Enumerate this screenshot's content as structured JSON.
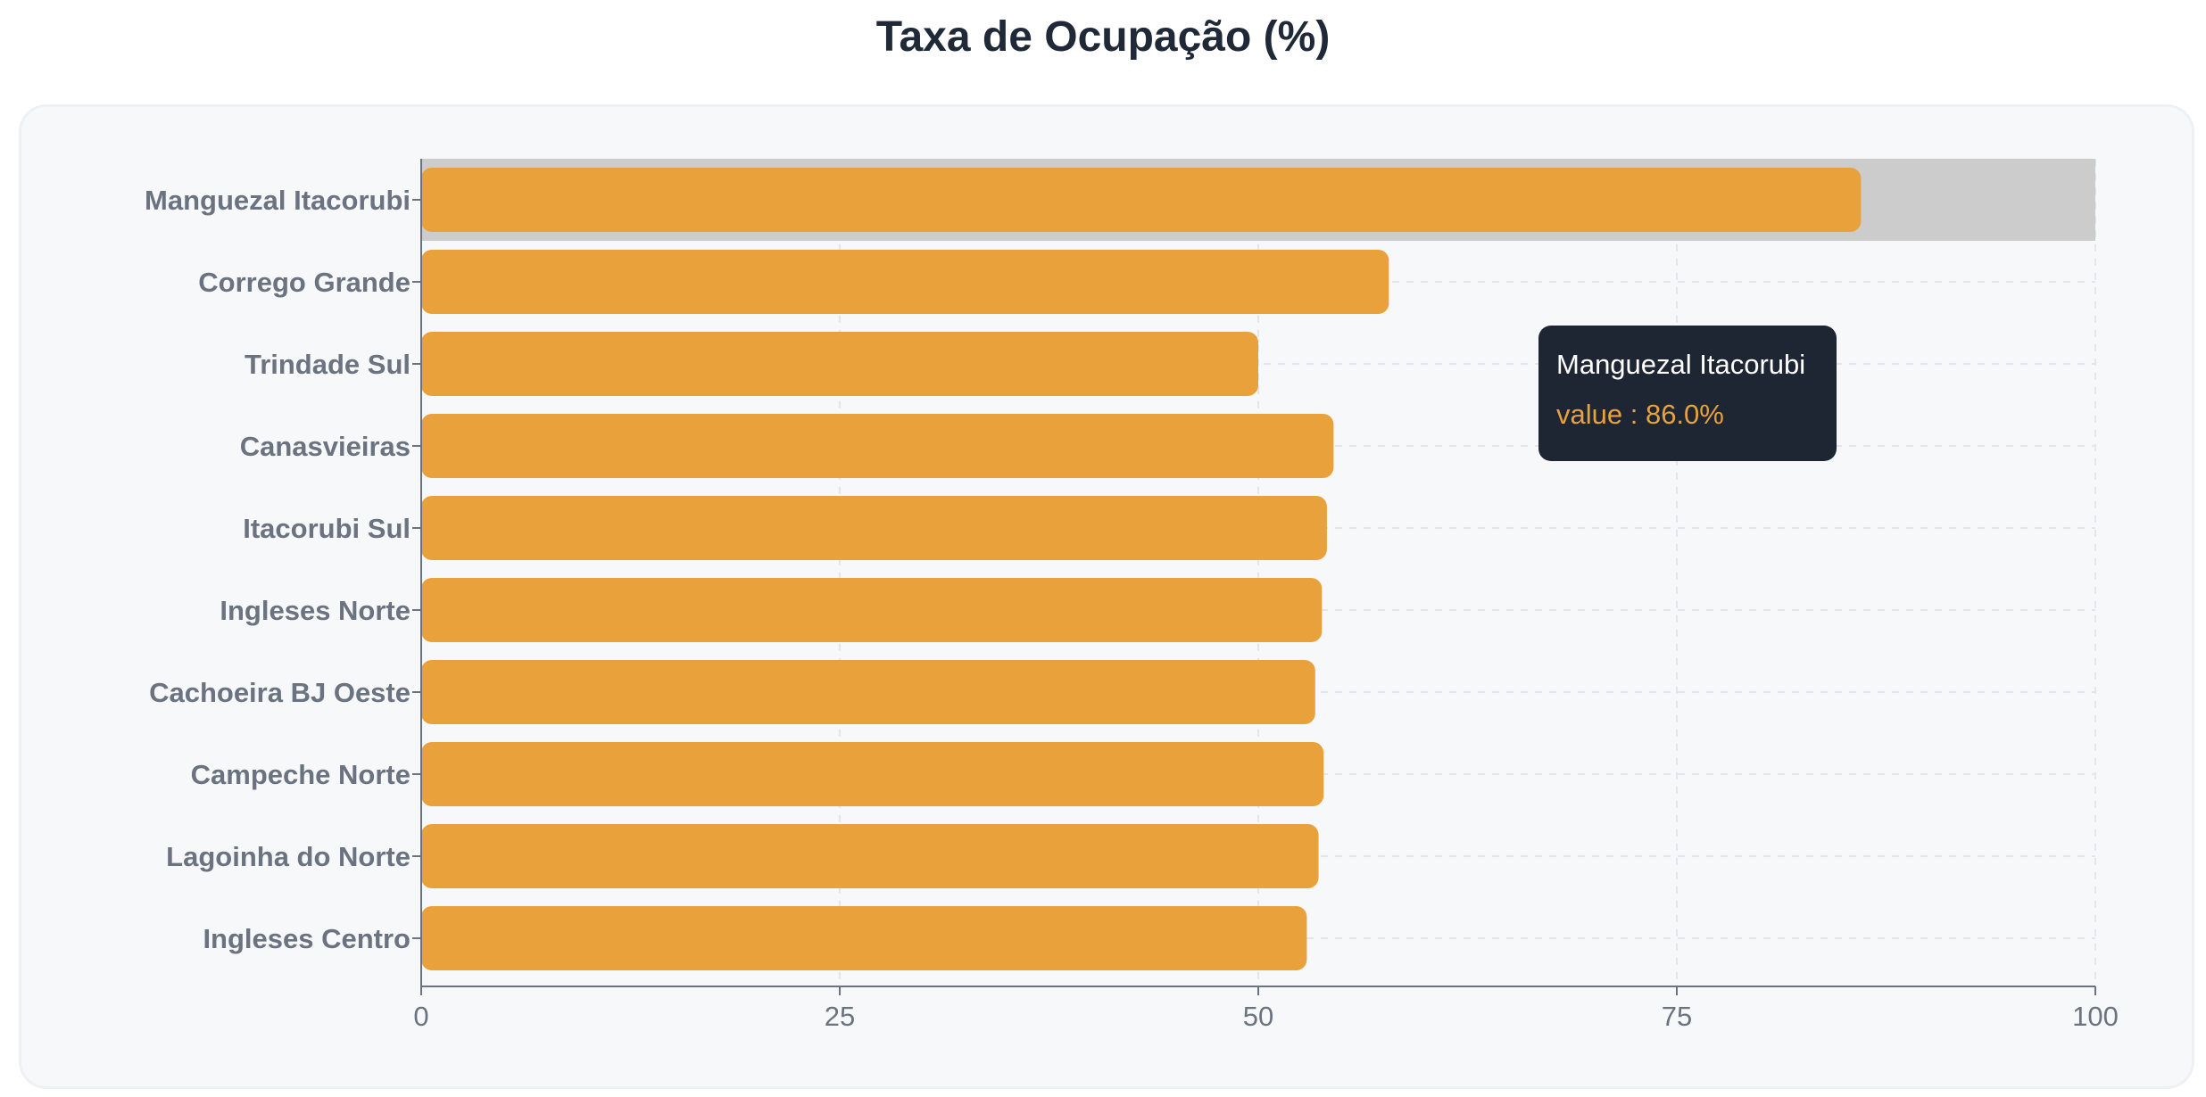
{
  "title": "Taxa de Ocupação (%)",
  "colors": {
    "bar": "#e8a13b",
    "highlight": "#cccccc",
    "axis": "#6b7280",
    "grid": "#e3e5e9",
    "tooltip_bg": "#1f2633"
  },
  "tooltip": {
    "title": "Manguezal Itacorubi",
    "value_label": "value : 86.0%"
  },
  "chart_data": {
    "type": "bar",
    "orientation": "horizontal",
    "title": "Taxa de Ocupação (%)",
    "xlabel": "",
    "ylabel": "",
    "xlim": [
      0,
      100
    ],
    "x_ticks": [
      0,
      25,
      50,
      75,
      100
    ],
    "grid": true,
    "highlighted_category": "Manguezal Itacorubi",
    "categories": [
      "Manguezal Itacorubi",
      "Corrego Grande",
      "Trindade Sul",
      "Canasvieiras",
      "Itacorubi Sul",
      "Ingleses Norte",
      "Cachoeira BJ Oeste",
      "Campeche Norte",
      "Lagoinha do Norte",
      "Ingleses Centro"
    ],
    "values": [
      86.0,
      57.8,
      50.0,
      54.5,
      54.1,
      53.8,
      53.4,
      53.9,
      53.6,
      52.9
    ]
  }
}
